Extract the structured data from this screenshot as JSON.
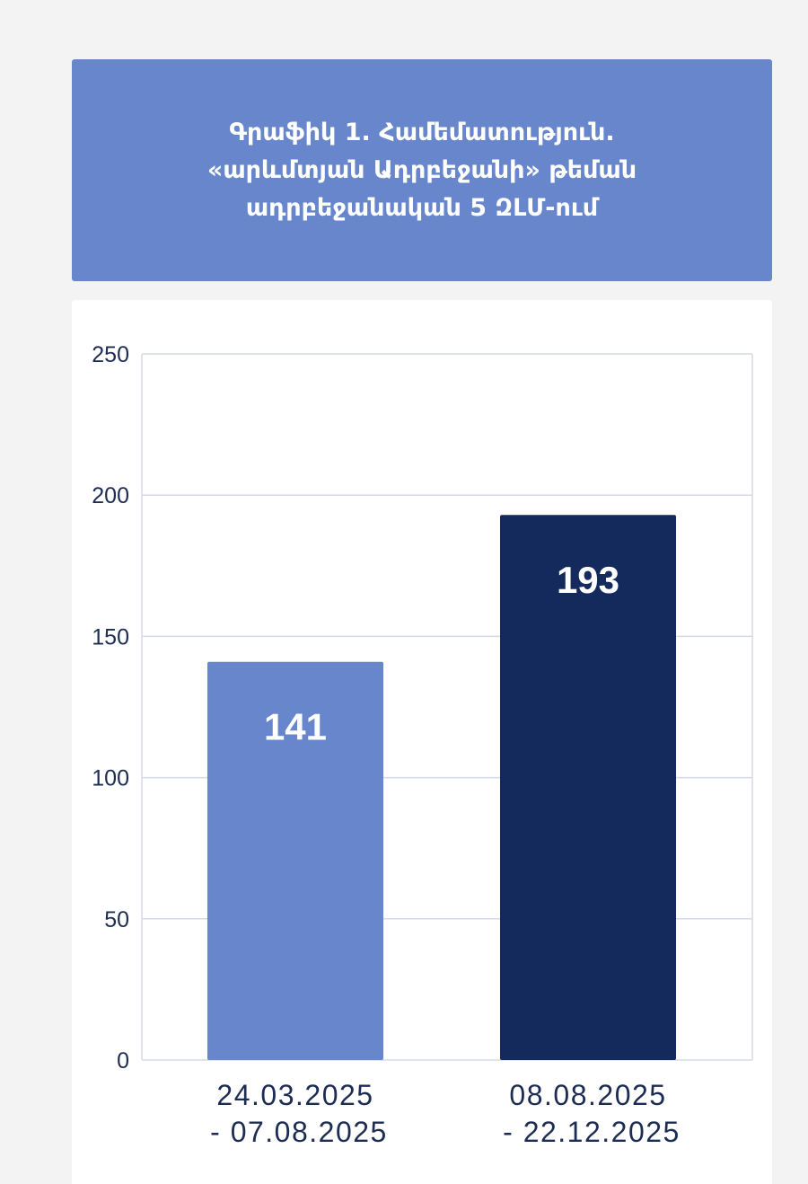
{
  "chart_data": {
    "type": "bar",
    "title": [
      "Գրաֆիկ 1. Համեմատություն.",
      "«արևմտյան Ադրբեջանի» թեման",
      "ադրբեջանական 5 ԶԼՄ-ում"
    ],
    "categories": [
      [
        "24.03.2025",
        "- 07.08.2025"
      ],
      [
        "08.08.2025",
        "- 22.12.2025"
      ]
    ],
    "values": [
      141,
      193
    ],
    "data_labels": [
      "141",
      "193"
    ],
    "ylim": [
      0,
      250
    ],
    "yticks": [
      0,
      50,
      100,
      150,
      200,
      250
    ],
    "ytick_labels": [
      "0",
      "50",
      "100",
      "150",
      "200",
      "250"
    ],
    "xlabel": "",
    "ylabel": "",
    "grid": true,
    "colors": [
      "#6786cc",
      "#152a5c"
    ],
    "grid_color": "#d5d9e8",
    "label_color": "#1d2c52"
  }
}
